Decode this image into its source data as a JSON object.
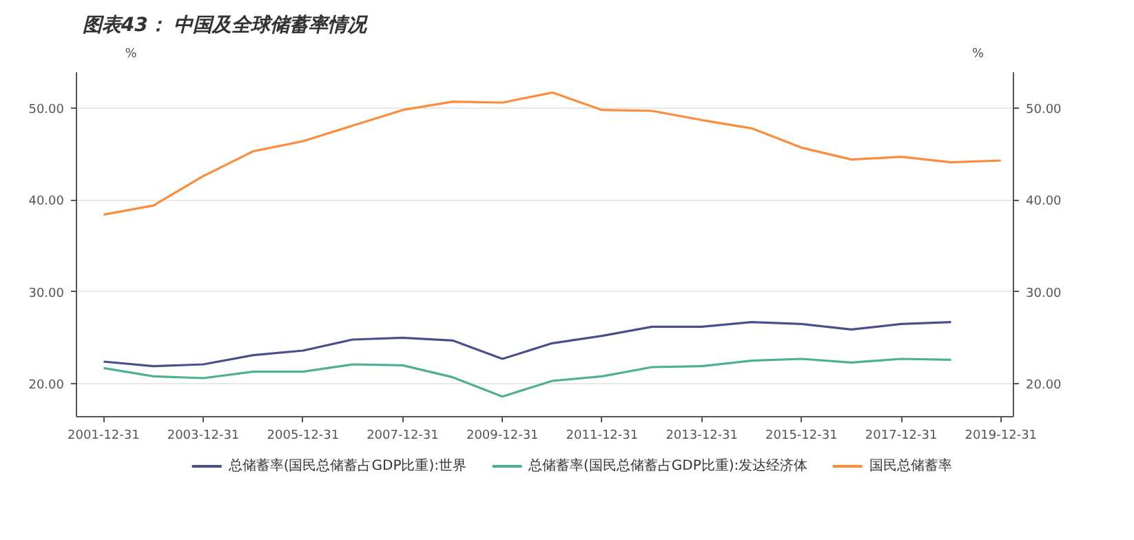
{
  "chart_data": {
    "type": "line",
    "title": "图表43：    中国及全球储蓄率情况",
    "ylabel": "%",
    "y2label": "%",
    "x": [
      "2001-12-31",
      "2002-12-31",
      "2003-12-31",
      "2004-12-31",
      "2005-12-31",
      "2006-12-31",
      "2007-12-31",
      "2008-12-31",
      "2009-12-31",
      "2010-12-31",
      "2011-12-31",
      "2012-12-31",
      "2013-12-31",
      "2014-12-31",
      "2015-12-31",
      "2016-12-31",
      "2017-12-31",
      "2018-12-31",
      "2019-12-31"
    ],
    "series": [
      {
        "name": "总储蓄率(国民总储蓄占GDP比重):世界",
        "color": "#4a4f8c",
        "values": [
          22.4,
          21.9,
          22.1,
          23.1,
          23.6,
          24.8,
          25.0,
          24.7,
          22.7,
          24.4,
          25.2,
          26.2,
          26.2,
          26.7,
          26.5,
          25.9,
          26.5,
          26.7,
          null
        ]
      },
      {
        "name": "总储蓄率(国民总储蓄占GDP比重):发达经济体",
        "color": "#4fae96",
        "values": [
          21.7,
          20.8,
          20.6,
          21.3,
          21.3,
          22.1,
          22.0,
          20.7,
          18.6,
          20.3,
          20.8,
          21.8,
          21.9,
          22.5,
          22.7,
          22.3,
          22.7,
          22.6,
          null
        ]
      },
      {
        "name": "国民总储蓄率",
        "color": "#fa8c3c",
        "values": [
          38.4,
          39.4,
          42.6,
          45.3,
          46.4,
          48.1,
          49.8,
          50.7,
          50.6,
          51.7,
          49.8,
          49.7,
          48.7,
          47.8,
          45.7,
          44.4,
          44.7,
          44.1,
          44.3
        ]
      }
    ],
    "xlim": [
      "2001-06-15",
      "2020-04-01"
    ],
    "xticks": [
      {
        "value": "2001-12-31",
        "label": "2001-12-31"
      },
      {
        "value": "2003-12-31",
        "label": "2003-12-31"
      },
      {
        "value": "2005-12-31",
        "label": "2005-12-31"
      },
      {
        "value": "2007-12-31",
        "label": "2007-12-31"
      },
      {
        "value": "2009-12-31",
        "label": "2009-12-31"
      },
      {
        "value": "2011-12-31",
        "label": "2011-12-31"
      },
      {
        "value": "2013-12-31",
        "label": "2013-12-31"
      },
      {
        "value": "2015-12-31",
        "label": "2015-12-31"
      },
      {
        "value": "2017-12-31",
        "label": "2017-12-31"
      },
      {
        "value": "2019-12-31",
        "label": "2019-12-31"
      }
    ],
    "ylim": [
      16.4,
      53.9
    ],
    "yticks": [
      {
        "value": 20,
        "label": "20.00"
      },
      {
        "value": 30,
        "label": "30.00"
      },
      {
        "value": 40,
        "label": "40.00"
      },
      {
        "value": 50,
        "label": "50.00"
      }
    ],
    "y2lim": [
      16.4,
      53.9
    ],
    "y2ticks": [
      {
        "value": 20,
        "label": "20.00"
      },
      {
        "value": 30,
        "label": "30.00"
      },
      {
        "value": 40,
        "label": "40.00"
      },
      {
        "value": 50,
        "label": "50.00"
      }
    ],
    "grid": "y",
    "legend": "bottom",
    "marker": "none",
    "line_style": "solid"
  }
}
